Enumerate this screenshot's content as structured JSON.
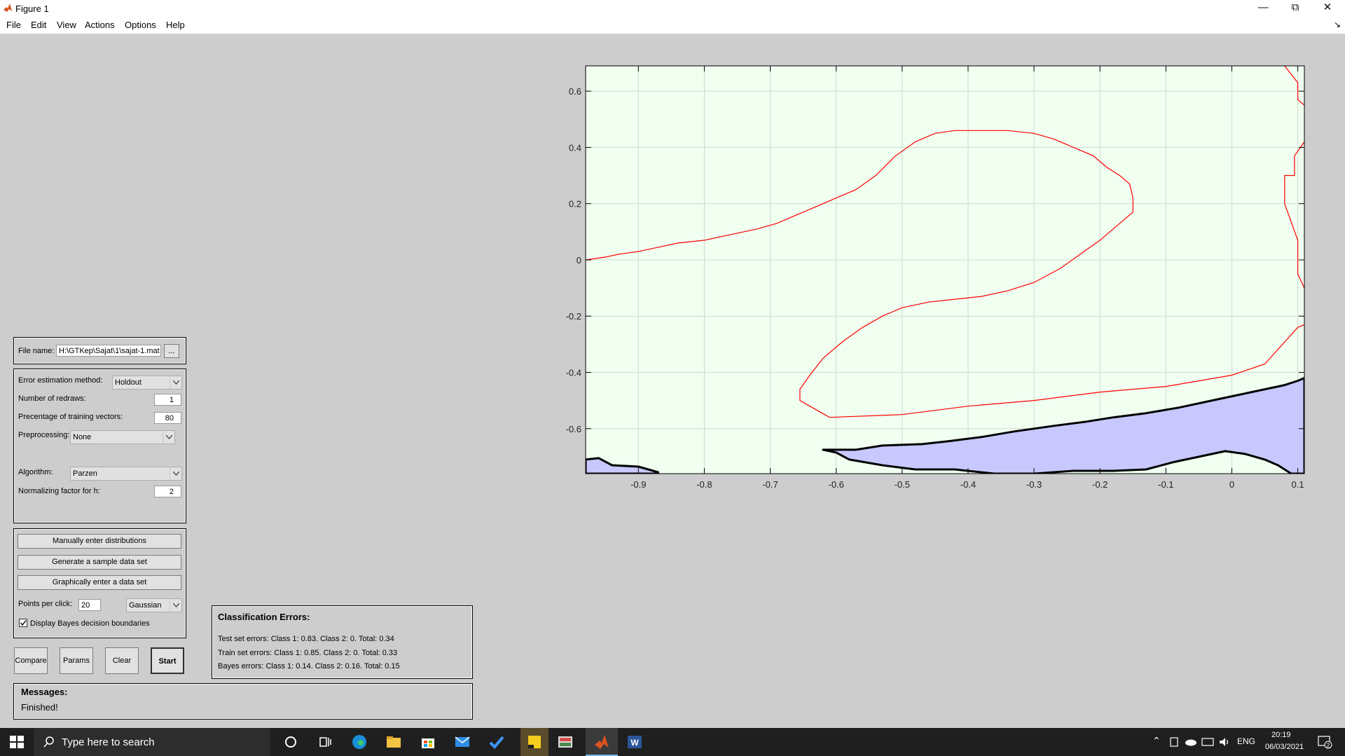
{
  "window": {
    "title": "Figure 1"
  },
  "menu": {
    "items": [
      "File",
      "Edit",
      "View",
      "Actions",
      "Options",
      "Help"
    ]
  },
  "file_panel": {
    "label": "File name:",
    "value": "H:\\GTKep\\Sajat\\1\\sajat-1.mat",
    "browse_label": "..."
  },
  "settings": {
    "error_method_label": "Error estimation method:",
    "error_method_value": "Holdout",
    "redraws_label": "Number of redraws:",
    "redraws_value": "1",
    "training_pct_label": "Precentage of training vectors:",
    "training_pct_value": "80",
    "preprocessing_label": "Preprocessing:",
    "preprocessing_value": "None",
    "algorithm_label": "Algorithm:",
    "algorithm_value": "Parzen",
    "h_label": "Normalizing factor for h:",
    "h_value": "2"
  },
  "data_panel": {
    "manual_label": "Manually enter distributions",
    "generate_label": "Generate a sample data set",
    "graphical_label": "Graphically enter a data set",
    "points_label": "Points per click:",
    "points_value": "20",
    "distribution_value": "Gaussian",
    "bayes_label": "Display Bayes decision boundaries",
    "bayes_checked": true
  },
  "actions": {
    "compare": "Compare",
    "params": "Params",
    "clear": "Clear",
    "start": "Start"
  },
  "messages": {
    "title": "Messages:",
    "text": "Finished!"
  },
  "errors": {
    "title": "Classification Errors:",
    "test": "Test set errors: Class 1: 0.83. Class 2: 0. Total: 0.34",
    "train": "Train set errors: Class 1: 0.85. Class 2: 0. Total: 0.33",
    "bayes": "Bayes errors: Class 1: 0.14. Class 2: 0.16. Total: 0.15"
  },
  "chart_data": {
    "type": "line",
    "xlim": [
      -0.98,
      0.11
    ],
    "ylim": [
      -0.76,
      0.69
    ],
    "xticks": [
      -0.9,
      -0.8,
      -0.7,
      -0.6,
      -0.5,
      -0.4,
      -0.3,
      -0.2,
      -0.1,
      0,
      0.1
    ],
    "xtick_labels": [
      "-0.9",
      "-0.8",
      "-0.7",
      "-0.6",
      "-0.5",
      "-0.4",
      "-0.3",
      "-0.2",
      "-0.1",
      "0",
      "0.1"
    ],
    "yticks": [
      -0.6,
      -0.4,
      -0.2,
      0,
      0.2,
      0.4,
      0.6
    ],
    "ytick_labels": [
      "-0.6",
      "-0.4",
      "-0.2",
      "0",
      "0.2",
      "0.4",
      "0.6"
    ],
    "grid": true,
    "background_color": "#f0fff0",
    "boundary_color": "#ff0000",
    "region_color": "#c8c8ff",
    "region_edge_color": "#000000",
    "red_boundaries": [
      {
        "x": [
          -0.98,
          -0.95,
          -0.93,
          -0.9,
          -0.87,
          -0.84,
          -0.8,
          -0.76,
          -0.72,
          -0.69,
          -0.66,
          -0.63,
          -0.6,
          -0.57,
          -0.54,
          -0.51,
          -0.48,
          -0.45,
          -0.42,
          -0.38,
          -0.34,
          -0.3,
          -0.27,
          -0.24,
          -0.21,
          -0.19,
          -0.17,
          -0.155,
          -0.15,
          -0.15,
          -0.17,
          -0.2,
          -0.23,
          -0.26,
          -0.3,
          -0.34,
          -0.38,
          -0.42,
          -0.46,
          -0.5,
          -0.53,
          -0.56,
          -0.59,
          -0.62,
          -0.64,
          -0.655,
          -0.655,
          -0.64,
          -0.625,
          -0.61,
          -0.5,
          -0.4,
          -0.3,
          -0.2,
          -0.1,
          0,
          0.05,
          0.1,
          0.11
        ],
        "y": [
          0,
          0.01,
          0.02,
          0.03,
          0.045,
          0.06,
          0.07,
          0.09,
          0.11,
          0.13,
          0.16,
          0.19,
          0.22,
          0.25,
          0.3,
          0.37,
          0.42,
          0.45,
          0.46,
          0.46,
          0.46,
          0.45,
          0.43,
          0.4,
          0.37,
          0.33,
          0.3,
          0.27,
          0.22,
          0.17,
          0.13,
          0.07,
          0.02,
          -0.03,
          -0.08,
          -0.11,
          -0.13,
          -0.14,
          -0.15,
          -0.17,
          -0.2,
          -0.24,
          -0.29,
          -0.35,
          -0.41,
          -0.46,
          -0.5,
          -0.52,
          -0.54,
          -0.56,
          -0.55,
          -0.52,
          -0.5,
          -0.47,
          -0.45,
          -0.41,
          -0.37,
          -0.24,
          -0.23
        ]
      },
      {
        "x": [
          0.08,
          0.1,
          0.1,
          0.11
        ],
        "y": [
          0.69,
          0.63,
          0.57,
          0.55
        ]
      },
      {
        "x": [
          0.11,
          0.095,
          0.095,
          0.08,
          0.08,
          0.1,
          0.1,
          0.11
        ],
        "y": [
          0.42,
          0.37,
          0.3,
          0.3,
          0.2,
          0.07,
          -0.05,
          -0.1
        ]
      }
    ],
    "regions": [
      {
        "x": [
          -0.62,
          -0.57,
          -0.53,
          -0.47,
          -0.43,
          -0.38,
          -0.33,
          -0.27,
          -0.22,
          -0.18,
          -0.13,
          -0.08,
          -0.03,
          0.01,
          0.05,
          0.08,
          0.1,
          0.11,
          0.11,
          0.09,
          0.07,
          0.05,
          0.02,
          -0.01,
          -0.05,
          -0.09,
          -0.13,
          -0.18,
          -0.24,
          -0.3,
          -0.36,
          -0.42,
          -0.48,
          -0.53,
          -0.58,
          -0.6,
          -0.62
        ],
        "y": [
          -0.675,
          -0.675,
          -0.66,
          -0.655,
          -0.645,
          -0.63,
          -0.61,
          -0.59,
          -0.575,
          -0.56,
          -0.545,
          -0.525,
          -0.5,
          -0.48,
          -0.46,
          -0.445,
          -0.43,
          -0.42,
          -0.76,
          -0.76,
          -0.73,
          -0.71,
          -0.69,
          -0.68,
          -0.7,
          -0.72,
          -0.745,
          -0.75,
          -0.75,
          -0.76,
          -0.76,
          -0.745,
          -0.745,
          -0.73,
          -0.71,
          -0.685,
          -0.675
        ]
      },
      {
        "x": [
          -0.98,
          -0.96,
          -0.94,
          -0.9,
          -0.87,
          -0.87,
          -0.98
        ],
        "y": [
          -0.71,
          -0.705,
          -0.73,
          -0.735,
          -0.755,
          -0.76,
          -0.76
        ]
      }
    ]
  }
}
